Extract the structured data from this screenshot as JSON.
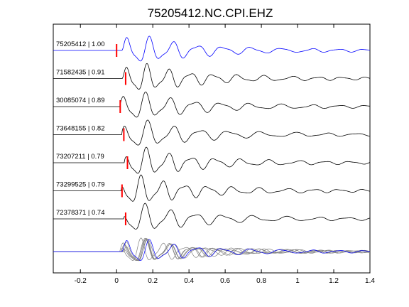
{
  "chart_data": {
    "type": "line",
    "title": "75205412.NC.CPI.EHZ",
    "xlabel": "",
    "ylabel": "",
    "xlim": [
      -0.35,
      1.4
    ],
    "xticks": [
      "-0.2",
      "0",
      "0.2",
      "0.4",
      "0.6",
      "0.8",
      "1",
      "1.2",
      "1.4"
    ],
    "xtick_values": [
      -0.2,
      0,
      0.2,
      0.4,
      0.6,
      0.8,
      1,
      1.2,
      1.4
    ],
    "grid": false,
    "series": [
      {
        "label": "75205412 | 1.00",
        "pick_time": 0.0,
        "color": "#0000ff",
        "lag": 0.0
      },
      {
        "label": "71582435 | 0.91",
        "pick_time": 0.05,
        "color": "#000000",
        "lag": 0.005
      },
      {
        "label": "30085074 | 0.89",
        "pick_time": 0.02,
        "color": "#000000",
        "lag": -0.01
      },
      {
        "label": "73648155 | 0.82",
        "pick_time": 0.04,
        "color": "#000000",
        "lag": 0.0
      },
      {
        "label": "73207211 | 0.79",
        "pick_time": 0.06,
        "color": "#000000",
        "lag": 0.015
      },
      {
        "label": "73299525 | 0.79",
        "pick_time": 0.03,
        "color": "#000000",
        "lag": -0.005
      },
      {
        "label": "72378371 | 0.74",
        "pick_time": 0.05,
        "color": "#000000",
        "lag": 0.01
      }
    ],
    "pick_color": "#ff0000",
    "stack_color": "#808080"
  }
}
